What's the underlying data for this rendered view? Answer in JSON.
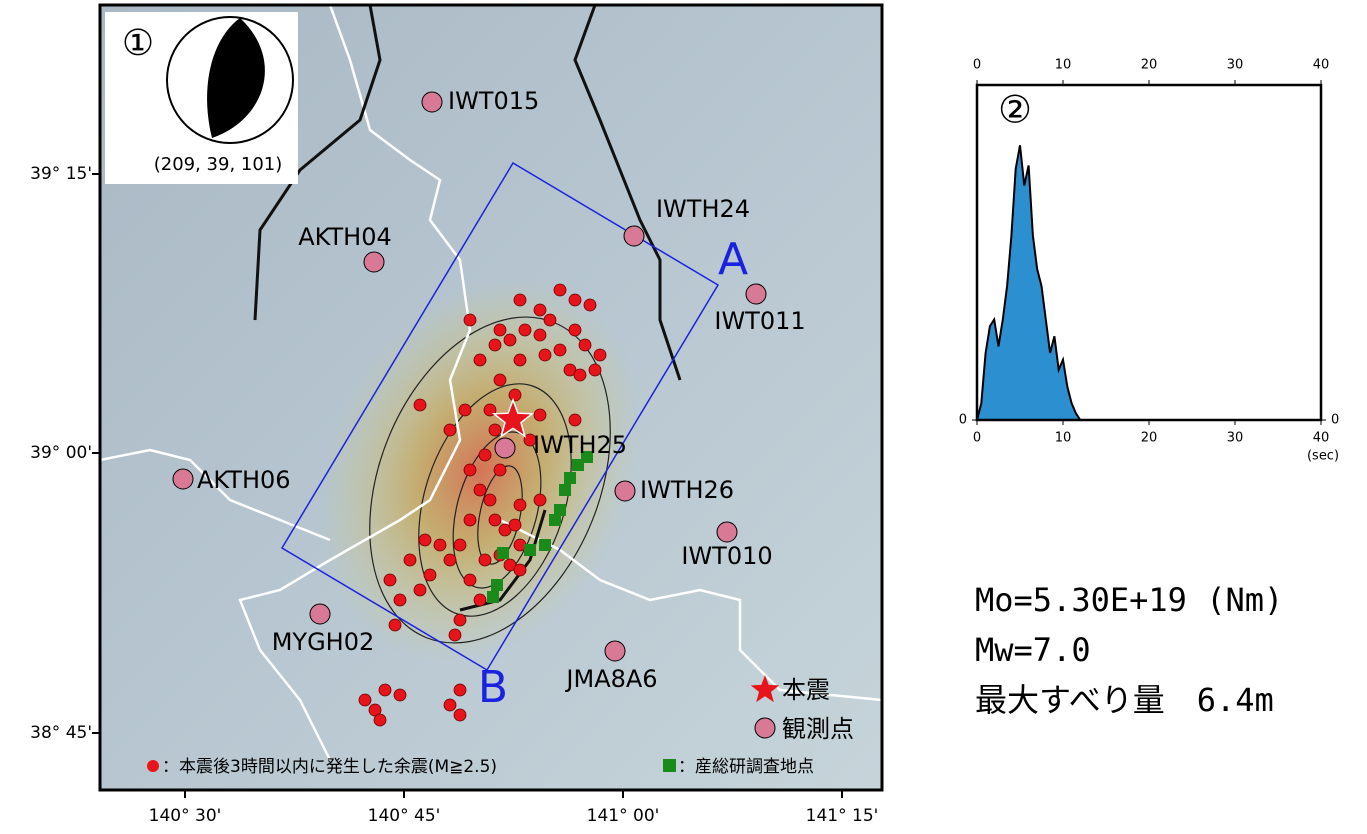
{
  "map": {
    "panel_label": "①",
    "mechanism": "(209, 39, 101)",
    "lat_ticks": [
      "39° 15'",
      "39° 00'",
      "38° 45'"
    ],
    "lon_ticks": [
      "140° 30'",
      "140° 45'",
      "141° 00'",
      "141° 15'"
    ],
    "fault_labels": [
      "A",
      "B"
    ],
    "stations": [
      "IWT015",
      "IWTH24",
      "AKTH04",
      "IWT011",
      "IWTH25",
      "AKTH06",
      "IWTH26",
      "IWT010",
      "MYGH02",
      "JMA8A6"
    ],
    "legend": {
      "mainshock": "本震",
      "station": "観測点",
      "aftershocks": "：本震後3時間以内に発生した余震(M≧2.5)",
      "survey": "：産総研調査地点"
    }
  },
  "chart_data": {
    "type": "area",
    "panel_label": "②",
    "x_unit": "(sec)",
    "x": [
      0,
      0.5,
      1,
      1.5,
      2,
      2.5,
      3,
      3.5,
      4,
      4.5,
      5,
      5.5,
      6,
      6.5,
      7,
      7.5,
      8,
      8.5,
      9,
      9.5,
      10,
      10.5,
      11,
      11.5,
      12
    ],
    "values": [
      0,
      0.05,
      0.2,
      0.28,
      0.3,
      0.22,
      0.3,
      0.4,
      0.55,
      0.75,
      0.82,
      0.7,
      0.76,
      0.55,
      0.45,
      0.4,
      0.3,
      0.2,
      0.25,
      0.15,
      0.18,
      0.1,
      0.05,
      0.02,
      0
    ],
    "color": "#2b8fd0",
    "xlim": [
      0,
      40
    ],
    "ylim": [
      0,
      1
    ],
    "xticks": [
      0,
      10,
      20,
      30,
      40
    ],
    "yticks": [
      0
    ]
  },
  "summary": [
    "Mo=5.30E+19 (Nm)",
    "Mw=7.0",
    "最大すべり量　6.4m"
  ]
}
